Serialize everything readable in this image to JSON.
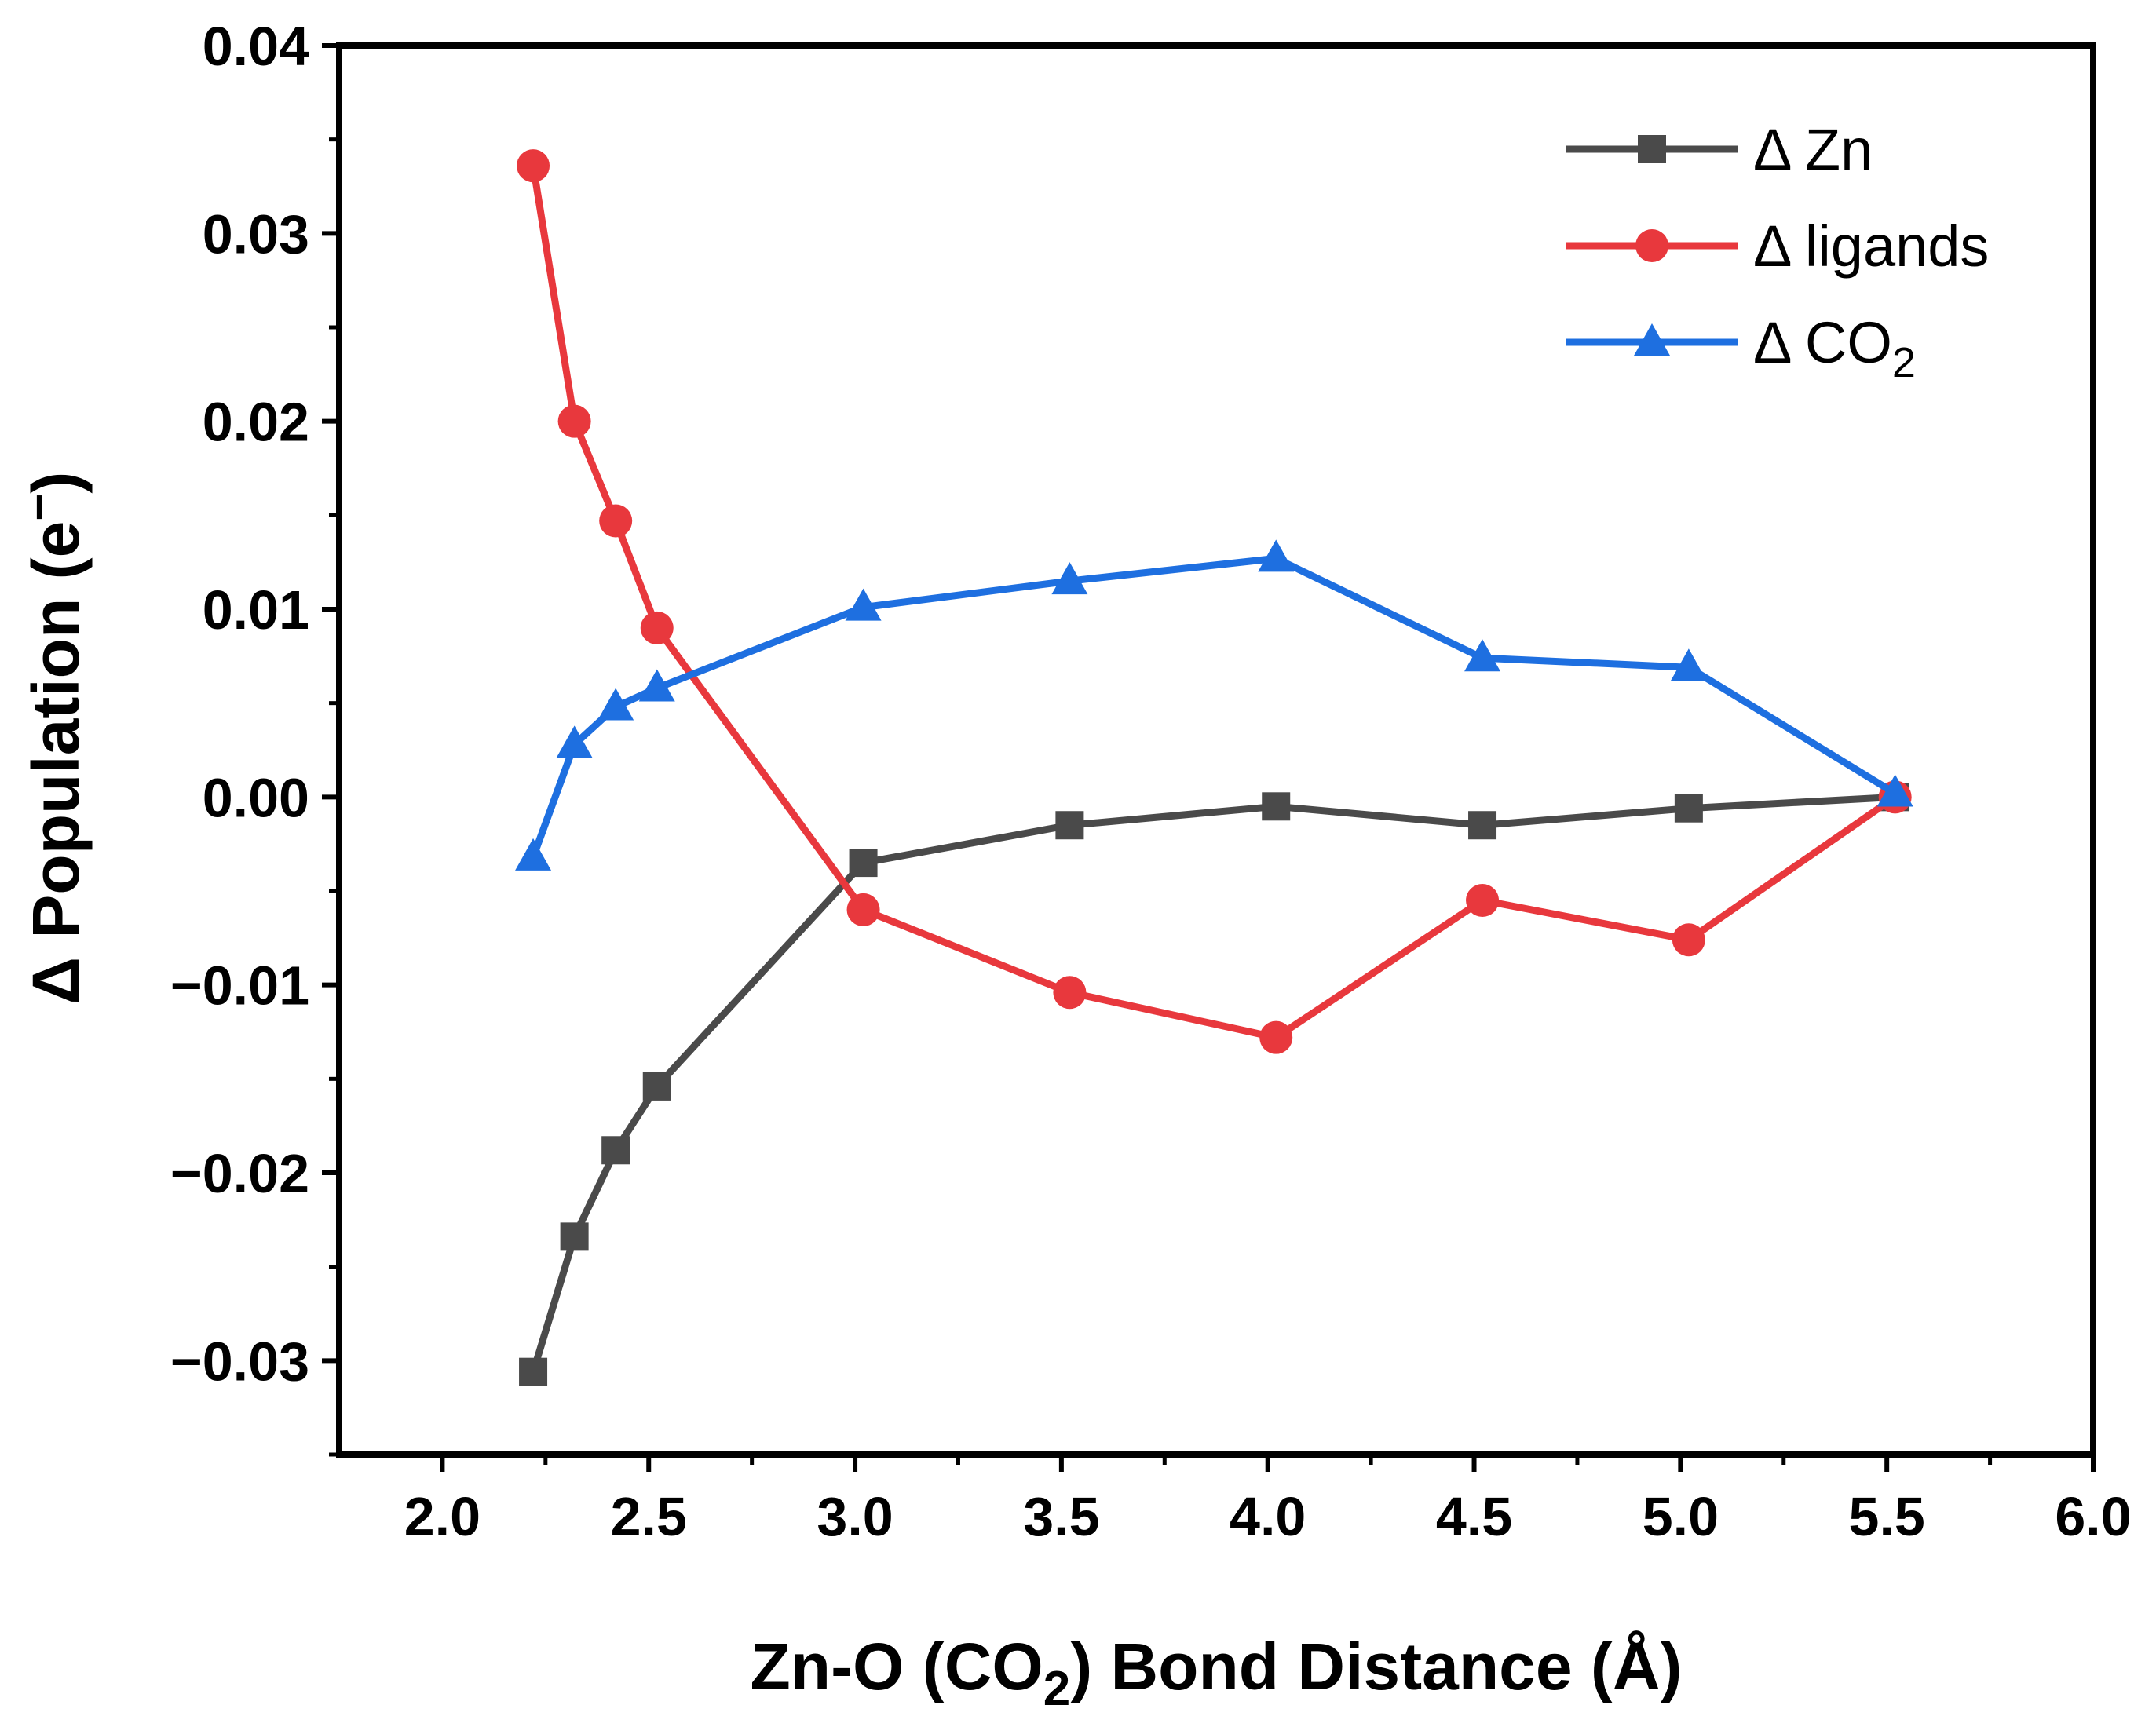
{
  "chart_data": {
    "type": "line",
    "title": "",
    "xlabel": {
      "main": "Zn-O (CO",
      "sub": "2",
      "rest": ") Bond Distance (Å)"
    },
    "ylabel": {
      "main": "Δ Population (e",
      "sup": "−",
      "rest": ")"
    },
    "xlim": [
      1.75,
      6.0
    ],
    "ylim": [
      -0.035,
      0.04
    ],
    "x_ticks": [
      2.0,
      2.5,
      3.0,
      3.5,
      4.0,
      4.5,
      5.0,
      5.5,
      6.0
    ],
    "x_tick_labels": [
      "2.0",
      "2.5",
      "3.0",
      "3.5",
      "4.0",
      "4.5",
      "5.0",
      "5.5",
      "6.0"
    ],
    "y_ticks": [
      0.04,
      0.03,
      0.02,
      0.01,
      0.0,
      -0.01,
      -0.02,
      -0.03
    ],
    "y_tick_labels": [
      "0.04",
      "0.03",
      "0.02",
      "0.01",
      "0.00",
      "−0.01",
      "−0.02",
      "−0.03"
    ],
    "x": [
      2.22,
      2.32,
      2.42,
      2.52,
      3.02,
      3.52,
      4.02,
      4.52,
      5.02,
      5.52
    ],
    "series": [
      {
        "name": "Δ Zn",
        "label_main": "Δ Zn",
        "label_sub": "",
        "color": "#4a4a4a",
        "marker": "square",
        "values": [
          -0.0306,
          -0.0234,
          -0.0188,
          -0.0154,
          -0.0035,
          -0.0015,
          -0.0005,
          -0.0015,
          -0.0006,
          0.0
        ]
      },
      {
        "name": "Δ ligands",
        "label_main": "Δ ligands",
        "label_sub": "",
        "color": "#e8383d",
        "marker": "circle",
        "values": [
          0.0336,
          0.02,
          0.0147,
          0.009,
          -0.006,
          -0.0104,
          -0.0128,
          -0.0055,
          -0.0076,
          0.0
        ]
      },
      {
        "name": "Δ CO2",
        "label_main": "Δ CO",
        "label_sub": "2",
        "color": "#1e6fe0",
        "marker": "triangle",
        "values": [
          -0.0032,
          0.0028,
          0.0048,
          0.0058,
          0.0101,
          0.0115,
          0.0127,
          0.0074,
          0.0069,
          0.0002
        ]
      }
    ],
    "legend_position": "top-right",
    "grid": false
  }
}
